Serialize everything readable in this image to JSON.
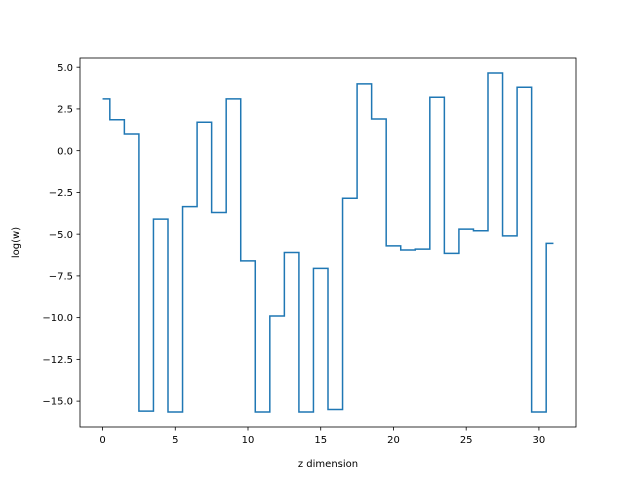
{
  "chart_data": {
    "type": "line",
    "drawstyle": "steps-mid",
    "title": "",
    "xlabel": "z dimension",
    "ylabel": "log(w)",
    "xlim": [
      -1.55,
      32.55
    ],
    "ylim": [
      -16.55,
      5.55
    ],
    "xticks": [
      0,
      5,
      10,
      15,
      20,
      25,
      30
    ],
    "xtick_labels": [
      "0",
      "5",
      "10",
      "15",
      "20",
      "25",
      "30"
    ],
    "yticks": [
      5.0,
      2.5,
      0.0,
      -2.5,
      -5.0,
      -7.5,
      -10.0,
      -12.5,
      -15.0
    ],
    "ytick_labels": [
      "5.0",
      "2.5",
      "0.0",
      "−2.5",
      "−5.0",
      "−7.5",
      "−10.0",
      "−12.5",
      "−15.0"
    ],
    "grid": false,
    "color": "#1f77b4",
    "series": [
      {
        "x": [
          0,
          1,
          2,
          3,
          4,
          5,
          6,
          7,
          8,
          9,
          10,
          11,
          12,
          13,
          14,
          15,
          16,
          17,
          18,
          19,
          20,
          21,
          22,
          23,
          24,
          25,
          26,
          27,
          28,
          29,
          30,
          31
        ],
        "y": [
          3.1,
          1.85,
          1.0,
          -15.6,
          -4.1,
          -15.65,
          -3.35,
          1.7,
          -3.7,
          3.1,
          -6.6,
          -15.65,
          -9.9,
          -6.1,
          -15.65,
          -7.05,
          -15.5,
          -2.85,
          4.0,
          1.9,
          -5.7,
          -5.95,
          -5.9,
          3.2,
          -6.15,
          -4.7,
          -4.8,
          4.65,
          -5.1,
          3.8,
          -15.65,
          -5.55
        ]
      }
    ]
  }
}
